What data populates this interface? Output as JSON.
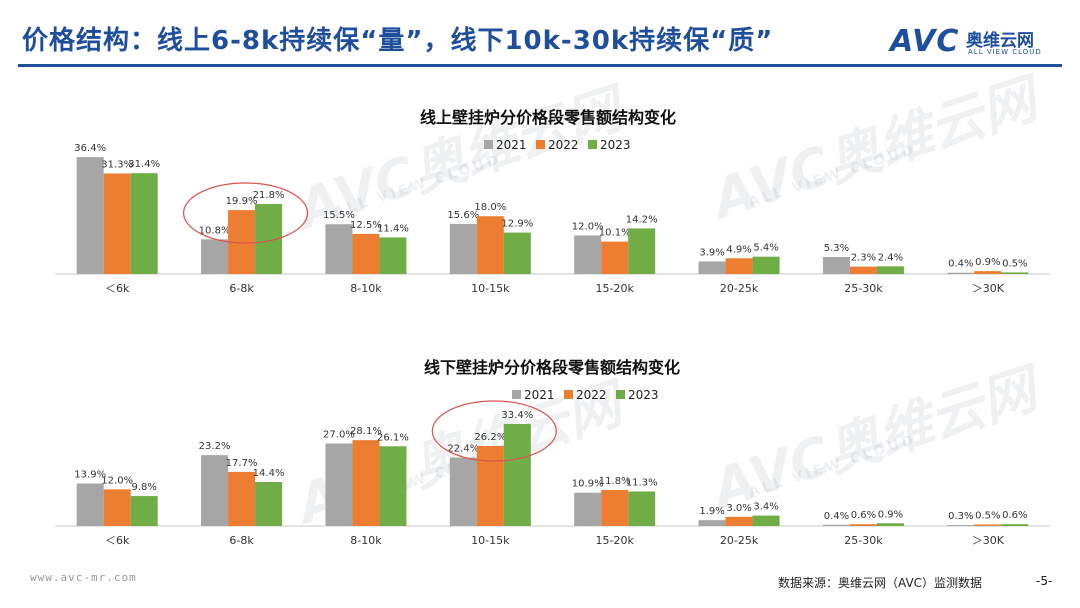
{
  "header": {
    "title": "价格结构：线上6-8k持续保“量”，线下10k-30k持续保“质”",
    "logo_mark": "AVC",
    "logo_cn": "奥维云网",
    "logo_en": "ALL VIEW CLOUD"
  },
  "watermarks": [
    "AVC奥维云网",
    "ALL VIEW CLOUD"
  ],
  "colors": {
    "2021": "#a6a6a6",
    "2022": "#ed7d31",
    "2023": "#70ad47",
    "highlight": "#d9534f",
    "accent": "#1f4e9c"
  },
  "chart_data": [
    {
      "type": "bar",
      "title": "线上壁挂炉分价格段零售额结构变化",
      "categories": [
        "＜6k",
        "6-8k",
        "8-10k",
        "10-15k",
        "15-20k",
        "20-25k",
        "25-30k",
        "＞30K"
      ],
      "series": [
        {
          "name": "2021",
          "values": [
            36.4,
            10.8,
            15.5,
            15.6,
            12.0,
            3.9,
            5.3,
            0.4
          ]
        },
        {
          "name": "2022",
          "values": [
            31.3,
            19.9,
            12.5,
            18.0,
            10.1,
            4.9,
            2.3,
            0.9
          ]
        },
        {
          "name": "2023",
          "values": [
            31.4,
            21.8,
            11.4,
            12.9,
            14.2,
            5.4,
            2.4,
            0.5
          ]
        }
      ],
      "labels": [
        [
          "36.4%",
          "10.8%",
          "15.5%",
          "15.6%",
          "12.0%",
          "3.9%",
          "5.3%",
          "0.4%"
        ],
        [
          "31.3%",
          "19.9%",
          "12.5%",
          "18.0%",
          "10.1%",
          "4.9%",
          "2.3%",
          "0.9%"
        ],
        [
          "31.4%",
          "21.8%",
          "11.4%",
          "12.9%",
          "14.2%",
          "5.4%",
          "2.4%",
          "0.5%"
        ]
      ],
      "ylim": [
        0,
        38
      ],
      "legend": "top-center",
      "grid": false,
      "highlight_category": "6-8k"
    },
    {
      "type": "bar",
      "title": "线下壁挂炉分价格段零售额结构变化",
      "categories": [
        "＜6k",
        "6-8k",
        "8-10k",
        "10-15k",
        "15-20k",
        "20-25k",
        "25-30k",
        "＞30K"
      ],
      "series": [
        {
          "name": "2021",
          "values": [
            13.9,
            23.2,
            27.0,
            22.4,
            10.9,
            1.9,
            0.4,
            0.3
          ]
        },
        {
          "name": "2022",
          "values": [
            12.0,
            17.7,
            28.1,
            26.2,
            11.8,
            3.0,
            0.6,
            0.5
          ]
        },
        {
          "name": "2023",
          "values": [
            9.8,
            14.4,
            26.1,
            33.4,
            11.3,
            3.4,
            0.9,
            0.6
          ]
        }
      ],
      "labels": [
        [
          "13.9%",
          "23.2%",
          "27.0%",
          "22.4%",
          "10.9%",
          "1.9%",
          "0.4%",
          "0.3%"
        ],
        [
          "12.0%",
          "17.7%",
          "28.1%",
          "26.2%",
          "11.8%",
          "3.0%",
          "0.6%",
          "0.5%"
        ],
        [
          "9.8%",
          "14.4%",
          "26.1%",
          "33.4%",
          "11.3%",
          "3.4%",
          "0.9%",
          "0.6%"
        ]
      ],
      "ylim": [
        0,
        36
      ],
      "legend": "top-center",
      "grid": false,
      "highlight_category": "10-15k"
    }
  ],
  "footer": {
    "website": "www.avc-mr.com",
    "source": "数据来源：奥维云网（AVC）监测数据",
    "page": "-5-"
  }
}
